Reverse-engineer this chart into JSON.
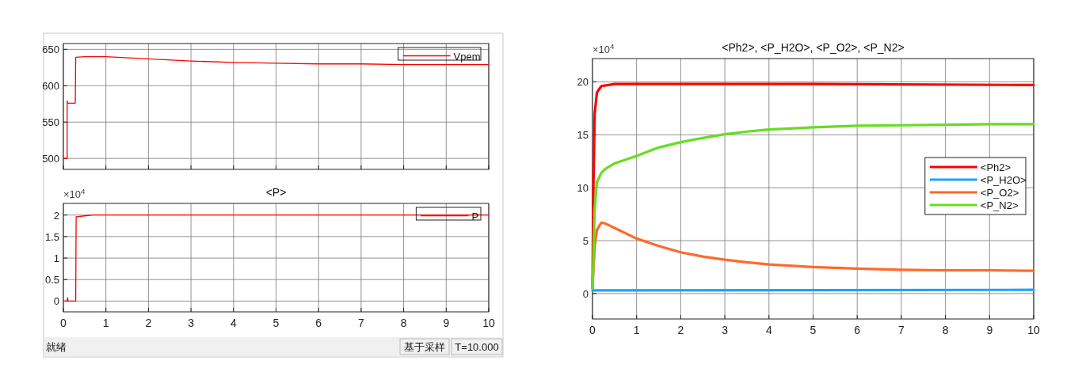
{
  "chart_data": [
    {
      "type": "line",
      "xlim": [
        0,
        10
      ],
      "ylim": [
        485,
        658
      ],
      "yticks": [
        500,
        550,
        600,
        650
      ],
      "xticks": [
        0,
        1,
        2,
        3,
        4,
        5,
        6,
        7,
        8,
        9,
        10
      ],
      "tick_labels": "y",
      "grid": true,
      "legend": "top right",
      "series": [
        {
          "name": "Vpem",
          "color": "#ff0000",
          "x": [
            0,
            0.09,
            0.09,
            0.1,
            0.28,
            0.29,
            0.5,
            1,
            2,
            3,
            4,
            5,
            6,
            7,
            8,
            9,
            10
          ],
          "values": [
            500,
            500,
            579,
            576,
            576,
            639,
            640,
            640,
            637,
            634,
            632,
            631,
            630,
            630,
            629,
            629,
            629
          ]
        }
      ]
    },
    {
      "type": "line",
      "title": "<P>",
      "xlim": [
        0,
        10
      ],
      "ylim": [
        -0.25,
        2.27
      ],
      "yticks": [
        0,
        0.5,
        1,
        1.5,
        2
      ],
      "xticks": [
        0,
        1,
        2,
        3,
        4,
        5,
        6,
        7,
        8,
        9,
        10
      ],
      "grid": true,
      "legend": "top right",
      "annotations": [
        "×10$^{4}$",
        "就绪",
        "基于采样",
        "T=10.000"
      ],
      "series": [
        {
          "name": "P",
          "color": "#ff0000",
          "x": [
            0,
            0.09,
            0.1,
            0.11,
            0.29,
            0.3,
            0.5,
            0.7,
            10
          ],
          "values": [
            0,
            0,
            0.08,
            0,
            0,
            1.96,
            1.98,
            2.0,
            2.0
          ]
        }
      ]
    },
    {
      "type": "line",
      "title": "<Ph2>, <P_H2O>, <P_O2>, <P_N2>",
      "xlim": [
        0,
        10
      ],
      "ylim": [
        -2.4,
        22.2
      ],
      "yticks": [
        0,
        5,
        10,
        15,
        20
      ],
      "xticks": [
        0,
        1,
        2,
        3,
        4,
        5,
        6,
        7,
        8,
        9,
        10
      ],
      "grid": true,
      "legend": "right",
      "annotations": [
        "×10$^{4}$"
      ],
      "series": [
        {
          "name": "<Ph2>",
          "color": "#ff0000",
          "x": [
            0,
            0.02,
            0.05,
            0.1,
            0.2,
            0.5,
            2,
            5,
            10
          ],
          "values": [
            0.5,
            10,
            17,
            19,
            19.6,
            19.8,
            19.8,
            19.8,
            19.7
          ]
        },
        {
          "name": "<P_H2O>",
          "color": "#1aa3ff",
          "x": [
            0,
            10
          ],
          "values": [
            0.3,
            0.35
          ]
        },
        {
          "name": "<P_O2>",
          "color": "#ff6a2a",
          "x": [
            0,
            0.05,
            0.1,
            0.2,
            0.3,
            0.5,
            1,
            1.5,
            2,
            2.5,
            3,
            3.5,
            4,
            5,
            6,
            7,
            8,
            9,
            10
          ],
          "values": [
            0.5,
            4.5,
            6,
            6.7,
            6.6,
            6.2,
            5.2,
            4.5,
            3.9,
            3.5,
            3.2,
            2.95,
            2.75,
            2.5,
            2.35,
            2.25,
            2.2,
            2.2,
            2.15
          ]
        },
        {
          "name": "<P_N2>",
          "color": "#66dd22",
          "x": [
            0,
            0.05,
            0.1,
            0.2,
            0.3,
            0.5,
            1,
            1.5,
            2,
            2.5,
            3,
            3.5,
            4,
            5,
            6,
            7,
            8,
            9,
            10
          ],
          "values": [
            0.5,
            8,
            10.5,
            11.4,
            11.8,
            12.3,
            13.0,
            13.8,
            14.3,
            14.7,
            15.05,
            15.3,
            15.5,
            15.7,
            15.85,
            15.9,
            15.95,
            16.0,
            16.0
          ]
        }
      ]
    }
  ]
}
